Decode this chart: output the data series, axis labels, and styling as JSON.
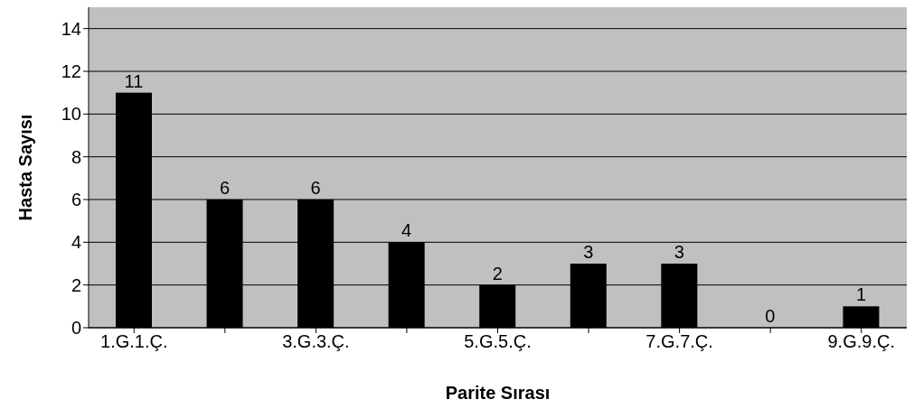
{
  "chart_data": {
    "type": "bar",
    "xlabel": "Parite Sırası",
    "ylabel": "Hasta Sayısı",
    "categories": [
      "1.G.1.Ç.",
      null,
      "3.G.3.Ç.",
      null,
      "5.G.5.Ç.",
      null,
      "7.G.7.Ç.",
      null,
      "9.G.9.Ç."
    ],
    "values": [
      11,
      6,
      6,
      4,
      2,
      3,
      3,
      0,
      1
    ],
    "color": "#000000",
    "ylim": [
      0,
      15
    ],
    "yticks": [
      0,
      2,
      4,
      6,
      8,
      10,
      12,
      14
    ],
    "grid": "y",
    "data_labels": true,
    "legend": false
  }
}
